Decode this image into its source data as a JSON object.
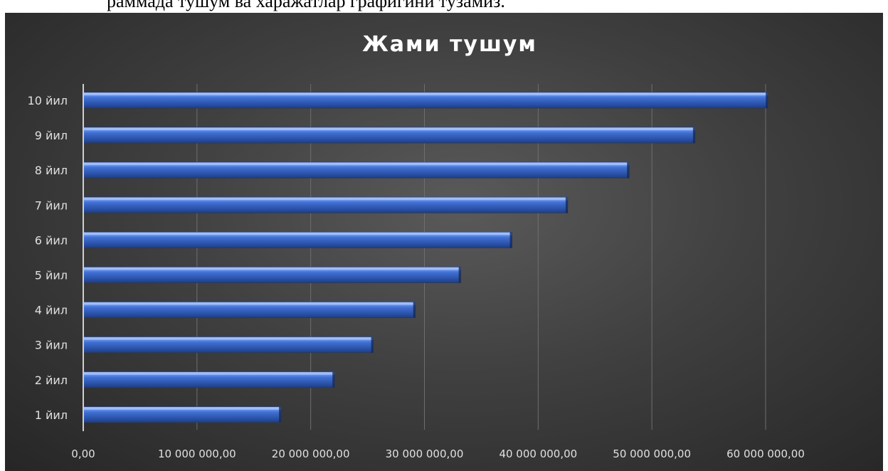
{
  "page_fragment": {
    "cut_text": "раммада тушум ва харажатлар графигини тузамиз."
  },
  "chart_data": {
    "type": "bar",
    "orientation": "horizontal",
    "title": "Жами тушум",
    "categories": [
      "1 йил",
      "2 йил",
      "3 йил",
      "4 йил",
      "5 йил",
      "6 йил",
      "7 йил",
      "8 йил",
      "9 йил",
      "10 йил"
    ],
    "values": [
      17400000,
      22100000,
      25500000,
      29200000,
      33200000,
      37700000,
      42600000,
      48000000,
      53800000,
      60200000
    ],
    "xlim": [
      0,
      60000000
    ],
    "x_ticks": [
      0,
      10000000,
      20000000,
      30000000,
      40000000,
      50000000,
      60000000
    ],
    "x_tick_labels": [
      "0,00",
      "10 000 000,00",
      "20 000 000,00",
      "30 000 000,00",
      "40 000 000,00",
      "50 000 000,00",
      "60 000 000,00"
    ],
    "xlabel": "",
    "ylabel": "",
    "grid": "vertical",
    "legend": "none",
    "colors": {
      "bar_top": "#8fb2f2",
      "bar_mid": "#3f6fd4",
      "bar_bottom": "#1b3e8c",
      "gridline": "#6e6e6e",
      "axis": "#cfcfcf",
      "text": "#ffffff",
      "tick_text": "#e0e0e0"
    }
  }
}
